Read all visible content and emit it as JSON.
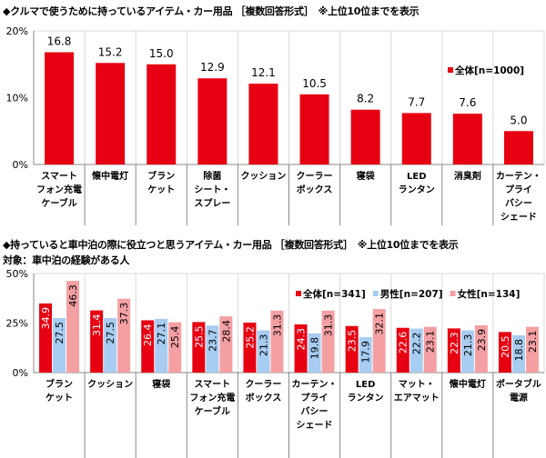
{
  "chart_data": [
    {
      "type": "bar",
      "title": "◆クルマで使うために持っているアイテム・カー用品 ［複数回答形式］　※上位10位までを表示",
      "categories": [
        "スマート\nフォン充電\nケーブル",
        "懐中電灯",
        "ブラン\nケット",
        "除菌\nシート・\nスプレー",
        "クッション",
        "クーラー\nボックス",
        "寝袋",
        "LED\nランタン",
        "消臭剤",
        "カーテン・\nプライ\nバシー\nシェード"
      ],
      "series": [
        {
          "name": "全体[n=1000]",
          "color": "#e60012",
          "values": [
            16.8,
            15.2,
            15.0,
            12.9,
            12.1,
            10.5,
            8.2,
            7.7,
            7.6,
            5.0
          ]
        }
      ],
      "yticks": [
        "0%",
        "10%",
        "20%"
      ],
      "ylim": [
        0,
        20
      ],
      "grid": "vertical separators",
      "legend": "top-right"
    },
    {
      "type": "bar",
      "title": "◆持っていると車中泊の際に役立つと思うアイテム・カー用品 ［複数回答形式］　※上位10位までを表示",
      "subtitle": "対象：車中泊の経験がある人",
      "categories": [
        "ブラン\nケット",
        "クッション",
        "寝袋",
        "スマート\nフォン充電\nケーブル",
        "クーラー\nボックス",
        "カーテン・\nプライ\nバシー\nシェード",
        "LED\nランタン",
        "マット・\nエアマット",
        "懐中電灯",
        "ポータブル\n電源"
      ],
      "series": [
        {
          "name": "全体[n=341]",
          "color": "#e60012",
          "values": [
            34.9,
            31.4,
            26.4,
            25.5,
            25.2,
            24.3,
            23.5,
            22.6,
            22.3,
            20.5
          ]
        },
        {
          "name": "男性[n=207]",
          "color": "#a7cdf2",
          "values": [
            27.5,
            27.5,
            27.1,
            23.7,
            21.3,
            19.8,
            17.9,
            22.2,
            21.3,
            18.8
          ]
        },
        {
          "name": "女性[n=134]",
          "color": "#f4a0a3",
          "values": [
            46.3,
            37.3,
            25.4,
            28.4,
            31.3,
            31.3,
            32.1,
            23.1,
            23.9,
            23.1
          ]
        }
      ],
      "yticks": [
        "0%",
        "25%",
        "50%"
      ],
      "ylim": [
        0,
        50
      ],
      "grid": "vertical separators",
      "legend": "top-right"
    }
  ]
}
